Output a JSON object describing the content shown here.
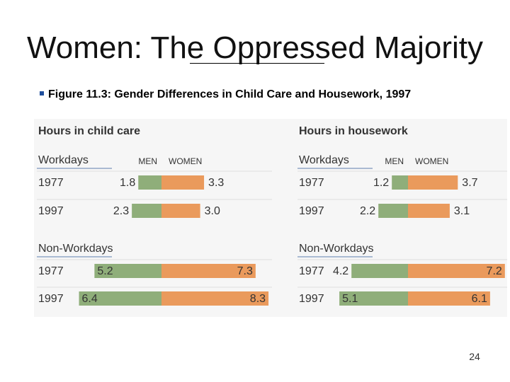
{
  "slide": {
    "title": "Women: The Oppressed Majority",
    "bullet": "Figure 11.3: Gender Differences in Child Care and Housework, 1997",
    "page_number": "24"
  },
  "colors": {
    "men": "#8fae7a",
    "women": "#ea9a5c",
    "heading": "#333333",
    "rule": "#5f7fae"
  },
  "chart_data": [
    {
      "type": "bar",
      "title": "Hours in child care",
      "column_labels": {
        "men": "MEN",
        "women": "WOMEN"
      },
      "groups": [
        {
          "name": "Workdays",
          "years": [
            "1977",
            "1997"
          ],
          "men": [
            1.8,
            2.3
          ],
          "women": [
            3.3,
            3.0
          ]
        },
        {
          "name": "Non-Workdays",
          "years": [
            "1977",
            "1997"
          ],
          "men": [
            5.2,
            6.4
          ],
          "women": [
            7.3,
            8.3
          ]
        }
      ]
    },
    {
      "type": "bar",
      "title": "Hours in housework",
      "column_labels": {
        "men": "MEN",
        "women": "WOMEN"
      },
      "groups": [
        {
          "name": "Workdays",
          "years": [
            "1977",
            "1997"
          ],
          "men": [
            1.2,
            2.2
          ],
          "women": [
            3.7,
            3.1
          ]
        },
        {
          "name": "Non-Workdays",
          "years": [
            "1977",
            "1997"
          ],
          "men": [
            4.2,
            5.1
          ],
          "women": [
            7.2,
            6.1
          ]
        }
      ]
    }
  ]
}
